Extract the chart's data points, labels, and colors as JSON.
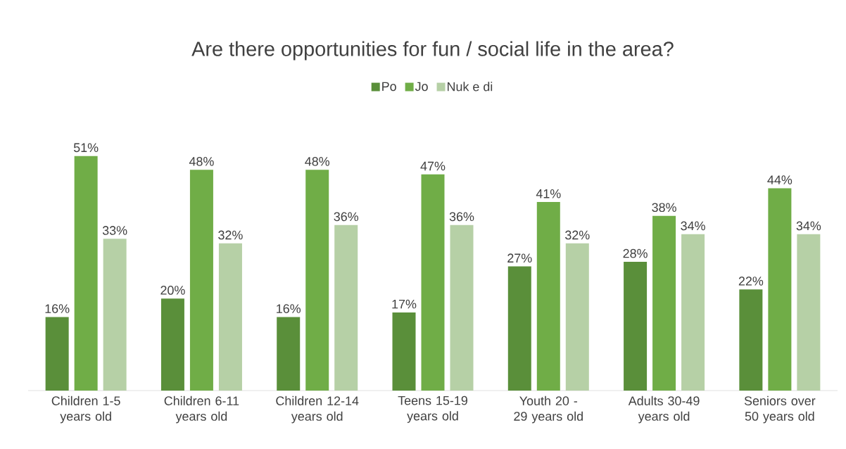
{
  "chart_data": {
    "type": "bar",
    "title": "Are there opportunities for fun / social life in the area?",
    "categories": [
      "Children 1-5 years old",
      "Children 6-11 years old",
      "Children 12-14 years old",
      "Teens 15-19 years old",
      "Youth 20 - 29 years old",
      "Adults 30-49 years old",
      "Seniors over 50 years old"
    ],
    "legend": "top",
    "series": [
      {
        "name": "Po",
        "color": "#5a8f3a",
        "values": [
          16,
          20,
          16,
          17,
          27,
          28,
          22
        ],
        "value_labels": [
          "16%",
          "20%",
          "16%",
          "17%",
          "27%",
          "28%",
          "22%"
        ]
      },
      {
        "name": "Jo",
        "color": "#70ad47",
        "values": [
          51,
          48,
          48,
          47,
          41,
          38,
          44
        ],
        "value_labels": [
          "51%",
          "48%",
          "48%",
          "47%",
          "41%",
          "38%",
          "44%"
        ]
      },
      {
        "name": "Nuk e di",
        "color": "#b6d0a6",
        "values": [
          33,
          32,
          36,
          36,
          32,
          34,
          34
        ],
        "value_labels": [
          "33%",
          "32%",
          "36%",
          "36%",
          "32%",
          "34%",
          "34%"
        ]
      }
    ]
  }
}
